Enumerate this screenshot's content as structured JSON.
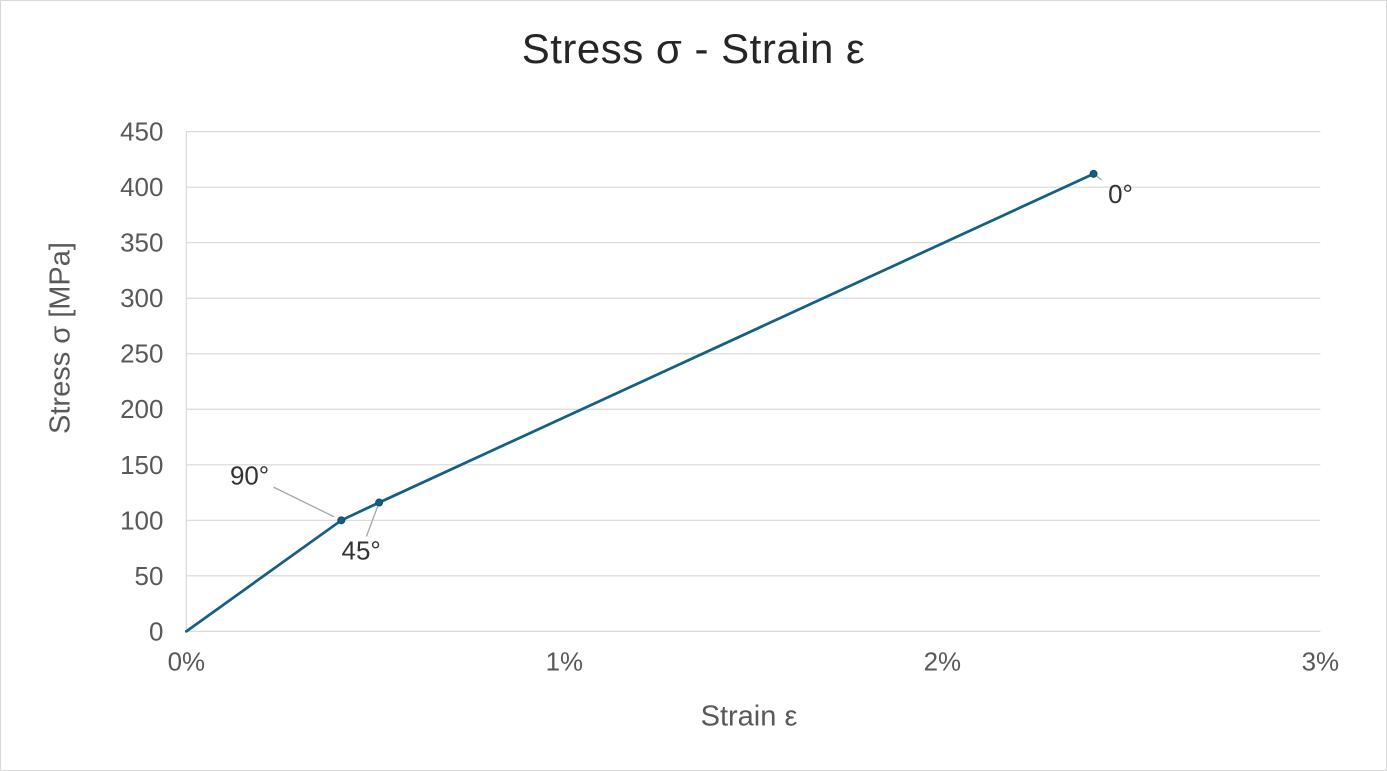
{
  "chart_data": {
    "type": "line",
    "title": "Stress σ - Strain ε",
    "xlabel": "Strain ε",
    "ylabel": "Stress σ [MPa]",
    "x_unit": "percent strain",
    "y_unit": "MPa",
    "xlim": [
      0,
      3
    ],
    "ylim": [
      0,
      450
    ],
    "grid": "horizontal-only",
    "legend": "none",
    "x_ticks": [
      {
        "value": 0,
        "label": "0%"
      },
      {
        "value": 1,
        "label": "1%"
      },
      {
        "value": 2,
        "label": "2%"
      },
      {
        "value": 3,
        "label": "3%"
      }
    ],
    "y_ticks": [
      {
        "value": 0,
        "label": "0"
      },
      {
        "value": 50,
        "label": "50"
      },
      {
        "value": 100,
        "label": "100"
      },
      {
        "value": 150,
        "label": "150"
      },
      {
        "value": 200,
        "label": "200"
      },
      {
        "value": 250,
        "label": "250"
      },
      {
        "value": 300,
        "label": "300"
      },
      {
        "value": 350,
        "label": "350"
      },
      {
        "value": 400,
        "label": "400"
      },
      {
        "value": 450,
        "label": "450"
      }
    ],
    "colors": {
      "series_line": "#156082",
      "marker_fill": "#156082",
      "marker_stroke": "#0f4c63",
      "gridline": "#d9d9d9",
      "axis_line": "#d9d9d9",
      "tick_label": "#595959",
      "axis_title": "#595959",
      "chart_title": "#262626",
      "data_label": "#333333",
      "leader_line": "#a6a6a6"
    },
    "series": [
      {
        "name": "Stress-Strain curve",
        "color": "#156082",
        "marker": "circle",
        "points": [
          {
            "x": 0,
            "y": 0
          },
          {
            "x": 0.41,
            "y": 100,
            "label": "90°",
            "label_offset": {
              "dx": -92,
              "dy": -45
            }
          },
          {
            "x": 0.51,
            "y": 116,
            "label": "45°",
            "label_offset": {
              "dx": -18,
              "dy": 48
            }
          },
          {
            "x": 2.4,
            "y": 412,
            "label": "0°",
            "label_offset": {
              "dx": 27,
              "dy": 20
            }
          }
        ]
      }
    ]
  }
}
